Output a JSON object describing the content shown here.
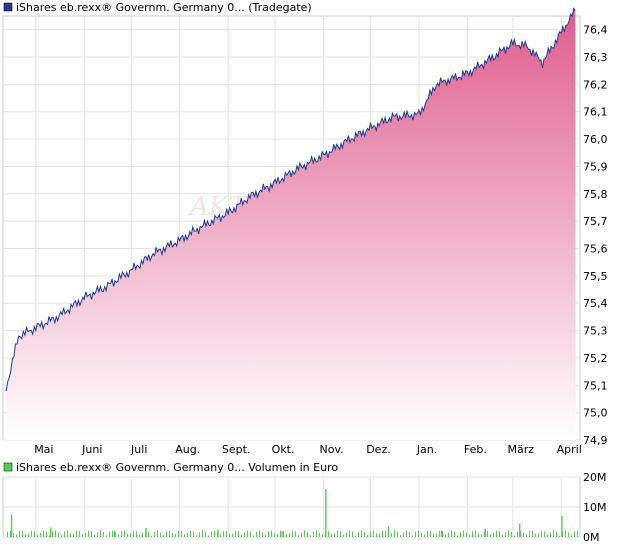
{
  "chart_data": [
    {
      "type": "area",
      "legend": "iShares eb.rexx® Governm. Germany 0... (Tradegate)",
      "watermark": "AKTIE",
      "colors": {
        "line": "#1f3b8f",
        "fill_top": "#df5d8e",
        "fill_bottom": "#ffffff",
        "legend_marker": "#1f3b8f"
      },
      "grid": true,
      "ylim": [
        74.9,
        76.45
      ],
      "yticks": [
        "74,9",
        "75,0",
        "75,1",
        "75,2",
        "75,3",
        "75,4",
        "75,5",
        "75,6",
        "75,7",
        "75,8",
        "75,9",
        "76,0",
        "76,1",
        "76,2",
        "76,3",
        "76,4"
      ],
      "xticks": [
        "Mai",
        "Juni",
        "Juli",
        "Aug.",
        "Sept.",
        "Okt.",
        "Nov.",
        "Dez.",
        "Jan.",
        "Feb.",
        "März",
        "April"
      ],
      "x_dates": [
        "2023-04-12",
        "2023-04-20",
        "2023-05-01",
        "2023-05-15",
        "2023-06-01",
        "2023-06-15",
        "2023-07-01",
        "2023-07-15",
        "2023-08-01",
        "2023-08-15",
        "2023-09-01",
        "2023-09-15",
        "2023-10-01",
        "2023-10-15",
        "2023-11-01",
        "2023-11-15",
        "2023-12-01",
        "2023-12-15",
        "2024-01-01",
        "2024-01-12",
        "2024-02-01",
        "2024-02-15",
        "2024-03-01",
        "2024-03-10",
        "2024-03-20",
        "2024-04-01",
        "2024-04-10"
      ],
      "values": [
        75.09,
        75.28,
        75.31,
        75.35,
        75.42,
        75.46,
        75.52,
        75.58,
        75.63,
        75.68,
        75.73,
        75.79,
        75.84,
        75.89,
        75.94,
        75.99,
        76.04,
        76.08,
        76.09,
        76.2,
        76.24,
        76.29,
        76.35,
        76.34,
        76.28,
        76.39,
        76.47
      ]
    },
    {
      "type": "bar",
      "legend": "iShares eb.rexx® Governm. Germany 0... Volumen in Euro",
      "colors": {
        "bar": "#55cc55",
        "legend_marker": "#55cc55"
      },
      "ylim": [
        0,
        20
      ],
      "yticks": [
        "0M",
        "10M",
        "20M"
      ],
      "x_dates": [
        "2023-04-15",
        "2023-05-10",
        "2023-06-20",
        "2023-07-10",
        "2023-08-25",
        "2023-10-05",
        "2023-11-02",
        "2023-12-12",
        "2024-01-15",
        "2024-02-12",
        "2024-03-05",
        "2024-04-01"
      ],
      "values": [
        7.5,
        3.2,
        2.1,
        3.0,
        2.4,
        1.9,
        16.0,
        3.5,
        2.2,
        2.8,
        4.5,
        7.0
      ]
    }
  ]
}
